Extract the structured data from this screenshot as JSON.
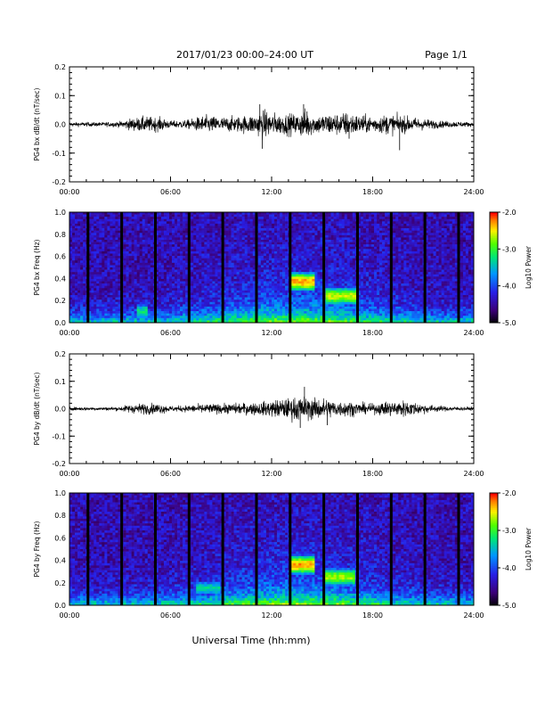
{
  "header": {
    "title": "2017/01/23  00:00–24:00 UT",
    "page": "Page 1/1"
  },
  "footer": {
    "xlabel": "Universal Time (hh:mm)"
  },
  "chart_data": [
    {
      "type": "line",
      "ylabel": "PG4 bx dB/dt (nT/sec)",
      "ylim": [
        -0.2,
        0.2
      ],
      "yticks": [
        "0.2",
        "0.1",
        "0.0",
        "-0.1",
        "-0.2"
      ],
      "xlim": [
        0,
        24
      ],
      "xticks": [
        "00:00",
        "06:00",
        "12:00",
        "18:00",
        "24:00"
      ],
      "envelope": {
        "hours": [
          0,
          2,
          3,
          3.5,
          4.5,
          5.5,
          6,
          7,
          8,
          9,
          10,
          11,
          11.5,
          12,
          12.5,
          13,
          13.5,
          14,
          14.5,
          15,
          15.5,
          16,
          16.5,
          17,
          18,
          19,
          20,
          21,
          22,
          23,
          24
        ],
        "amplitude": [
          0.006,
          0.006,
          0.008,
          0.015,
          0.022,
          0.018,
          0.01,
          0.012,
          0.025,
          0.02,
          0.022,
          0.028,
          0.04,
          0.033,
          0.028,
          0.03,
          0.028,
          0.042,
          0.026,
          0.028,
          0.032,
          0.03,
          0.035,
          0.028,
          0.022,
          0.028,
          0.022,
          0.016,
          0.01,
          0.008,
          0.006
        ]
      },
      "spikes": [
        {
          "hour": 11.3,
          "value": 0.07
        },
        {
          "hour": 11.45,
          "value": -0.085
        },
        {
          "hour": 13.9,
          "value": 0.07
        },
        {
          "hour": 14.1,
          "value": 0.045
        },
        {
          "hour": 16.6,
          "value": -0.05
        },
        {
          "hour": 19.6,
          "value": -0.09
        }
      ]
    },
    {
      "type": "heatmap",
      "ylabel": "PG4 bx Freq (Hz)",
      "ylim": [
        0,
        1
      ],
      "yticks": [
        "1.0",
        "0.8",
        "0.6",
        "0.4",
        "0.2",
        "0.0"
      ],
      "xlim": [
        0,
        24
      ],
      "xticks": [
        "00:00",
        "06:00",
        "12:00",
        "18:00",
        "24:00"
      ],
      "colorbar": {
        "label": "Log10 Power",
        "range": [
          -5,
          -2
        ],
        "ticks": [
          "-2.0",
          "-3.0",
          "-4.0",
          "-5.0"
        ]
      },
      "gaps_hours": [
        1.1,
        3.1,
        5.1,
        7.1,
        9.1,
        11.1,
        13.1,
        15.1,
        17.1,
        19.1,
        21.1,
        23.1
      ],
      "features": [
        {
          "hour_start": 13.1,
          "hour_end": 14.6,
          "freq": 0.37,
          "level": -2.3
        },
        {
          "hour_start": 15.2,
          "hour_end": 17.1,
          "freq": 0.24,
          "level": -2.6
        },
        {
          "hour_start": 4.0,
          "hour_end": 4.6,
          "freq": 0.1,
          "level": -3.2
        }
      ]
    },
    {
      "type": "line",
      "ylabel": "PG4 by dB/dt (nT/sec)",
      "ylim": [
        -0.2,
        0.2
      ],
      "yticks": [
        "0.2",
        "0.1",
        "0.0",
        "-0.1",
        "-0.2"
      ],
      "xlim": [
        0,
        24
      ],
      "xticks": [
        "00:00",
        "06:00",
        "12:00",
        "18:00",
        "24:00"
      ],
      "envelope": {
        "hours": [
          0,
          2,
          3,
          3.5,
          4.5,
          5.5,
          6,
          7,
          8,
          9,
          10,
          11,
          11.5,
          12,
          12.5,
          13,
          13.5,
          14,
          14.5,
          15,
          15.5,
          16,
          16.5,
          17,
          18,
          19,
          20,
          21,
          22,
          23,
          24
        ],
        "amplitude": [
          0.005,
          0.005,
          0.006,
          0.012,
          0.016,
          0.014,
          0.008,
          0.01,
          0.014,
          0.014,
          0.016,
          0.018,
          0.02,
          0.024,
          0.028,
          0.03,
          0.036,
          0.035,
          0.03,
          0.032,
          0.028,
          0.022,
          0.024,
          0.018,
          0.014,
          0.022,
          0.024,
          0.014,
          0.008,
          0.006,
          0.005
        ]
      },
      "spikes": [
        {
          "hour": 13.95,
          "value": 0.08
        },
        {
          "hour": 13.7,
          "value": -0.07
        },
        {
          "hour": 15.3,
          "value": -0.06
        }
      ]
    },
    {
      "type": "heatmap",
      "ylabel": "PG4 by Freq (Hz)",
      "ylim": [
        0,
        1
      ],
      "yticks": [
        "1.0",
        "0.8",
        "0.6",
        "0.4",
        "0.2",
        "0.0"
      ],
      "xlim": [
        0,
        24
      ],
      "xticks": [
        "00:00",
        "06:00",
        "12:00",
        "18:00",
        "24:00"
      ],
      "colorbar": {
        "label": "Log10 Power",
        "range": [
          -5,
          -2
        ],
        "ticks": [
          "-2.0",
          "-3.0",
          "-4.0",
          "-5.0"
        ]
      },
      "gaps_hours": [
        1.1,
        3.1,
        5.1,
        7.1,
        9.1,
        11.1,
        13.1,
        15.1,
        17.1,
        19.1,
        21.1,
        23.1
      ],
      "features": [
        {
          "hour_start": 13.1,
          "hour_end": 14.5,
          "freq": 0.36,
          "level": -2.3
        },
        {
          "hour_start": 15.0,
          "hour_end": 17.0,
          "freq": 0.25,
          "level": -2.7
        },
        {
          "hour_start": 7.5,
          "hour_end": 9.0,
          "freq": 0.15,
          "level": -3.3
        }
      ]
    }
  ]
}
